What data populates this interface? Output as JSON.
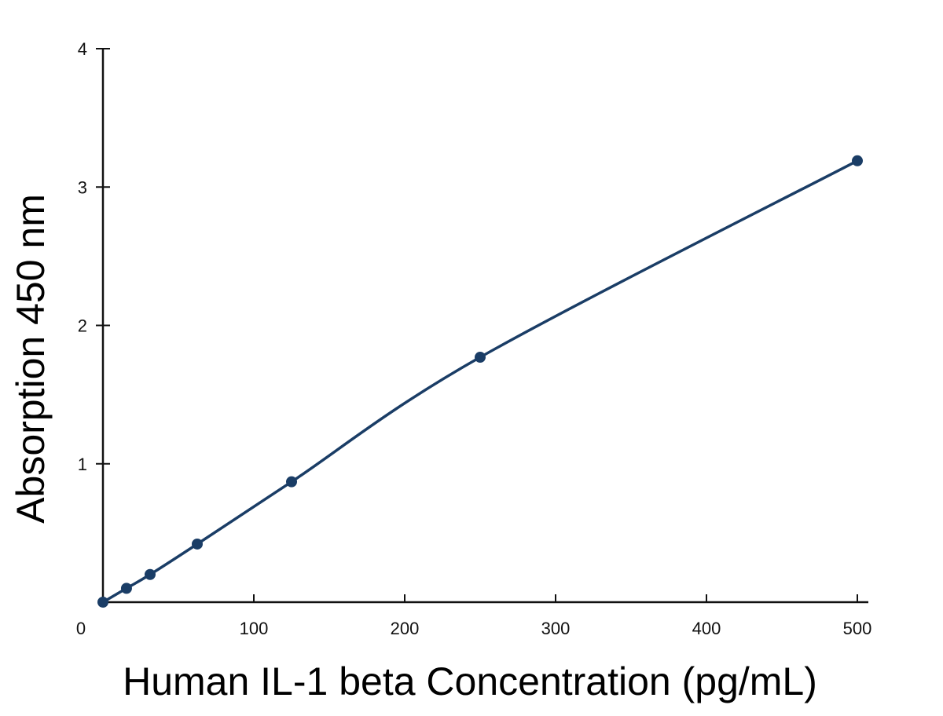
{
  "chart_data": {
    "type": "line",
    "title": "",
    "xlabel": "Human IL-1 beta Concentration (pg/mL)",
    "ylabel": "Absorption 450 nm",
    "xlim": [
      0,
      500
    ],
    "ylim": [
      0,
      4
    ],
    "x_ticks": [
      0,
      100,
      200,
      300,
      400,
      500
    ],
    "y_ticks": [
      1,
      2,
      3,
      4
    ],
    "x_tick_labels": [
      "0",
      "100",
      "200",
      "300",
      "400",
      "500"
    ],
    "y_tick_labels": [
      "1",
      "2",
      "3",
      "4"
    ],
    "grid": false,
    "legend": "none",
    "series": [
      {
        "x": [
          0,
          15.6,
          31.25,
          62.5,
          125,
          250,
          500
        ],
        "y": [
          0.0,
          0.1,
          0.2,
          0.42,
          0.87,
          1.77,
          3.19
        ],
        "marker": "circle",
        "color": "#1a3d66",
        "smooth": true
      }
    ],
    "axis_color": "#111111"
  }
}
